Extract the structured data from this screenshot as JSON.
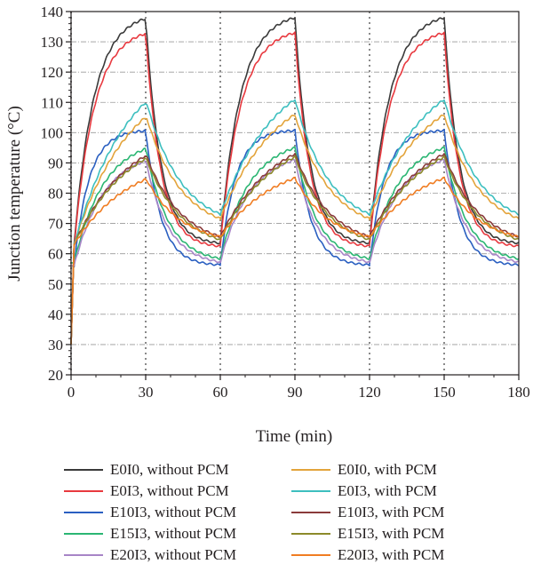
{
  "chart_data": {
    "type": "line",
    "title": "",
    "xlabel": "Time (min)",
    "ylabel": "Junction temperature (°C)",
    "xlim": [
      0,
      180
    ],
    "ylim": [
      20,
      140
    ],
    "xticks": [
      "0",
      "30",
      "60",
      "90",
      "120",
      "150",
      "180"
    ],
    "yticks": [
      "20",
      "30",
      "40",
      "50",
      "60",
      "70",
      "80",
      "90",
      "100",
      "110",
      "120",
      "130",
      "140"
    ],
    "grid": "horizontal dash-dot",
    "cycle_period_min": 60,
    "heating_duration_min": 30,
    "legend_position": "bottom, two columns",
    "series": [
      {
        "name": "E0I0, without PCM",
        "color": "#3a3a3a",
        "start": 30,
        "low": 63,
        "peak": 138,
        "end": 63,
        "rise": "fast",
        "fall": "fast",
        "first_low": 63
      },
      {
        "name": "E0I3, without PCM",
        "color": "#e8393f",
        "start": 30,
        "low": 62,
        "peak": 133,
        "end": 62,
        "rise": "fast",
        "fall": "fast",
        "first_low": 62
      },
      {
        "name": "E10I3, without PCM",
        "color": "#2a5fc1",
        "start": 56,
        "low": 56,
        "peak": 101,
        "end": 56,
        "rise": "plateau",
        "fall": "fast",
        "first_low": 56
      },
      {
        "name": "E15I3, without PCM",
        "color": "#2bb673",
        "start": 57,
        "low": 57,
        "peak": 95,
        "end": 57,
        "rise": "medium",
        "fall": "medium",
        "first_low": 57
      },
      {
        "name": "E20I3, without PCM",
        "color": "#a785c7",
        "start": 56,
        "low": 56,
        "peak": 91,
        "end": 56,
        "rise": "medium",
        "fall": "medium",
        "first_low": 56
      },
      {
        "name": "E0I0, with PCM",
        "color": "#e3a43b",
        "start": 30,
        "low": 67,
        "peak": 106,
        "end": 66,
        "rise": "slow",
        "fall": "slow",
        "first_low": 63
      },
      {
        "name": "E0I3, with PCM",
        "color": "#3dbfbf",
        "start": 30,
        "low": 68,
        "peak": 111,
        "end": 67,
        "rise": "slow",
        "fall": "slow",
        "first_low": 63
      },
      {
        "name": "E10I3, with PCM",
        "color": "#8a3b3b",
        "start": 30,
        "low": 62,
        "peak": 93,
        "end": 62,
        "rise": "slow",
        "fall": "slow",
        "first_low": 63
      },
      {
        "name": "E15I3, with PCM",
        "color": "#8c8a2a",
        "start": 30,
        "low": 61,
        "peak": 92,
        "end": 61,
        "rise": "slow",
        "fall": "slow",
        "first_low": 63
      },
      {
        "name": "E20I3, with PCM",
        "color": "#f07d22",
        "start": 30,
        "low": 63,
        "peak": 85,
        "end": 63,
        "rise": "slow",
        "fall": "slow",
        "first_low": 63
      }
    ]
  }
}
